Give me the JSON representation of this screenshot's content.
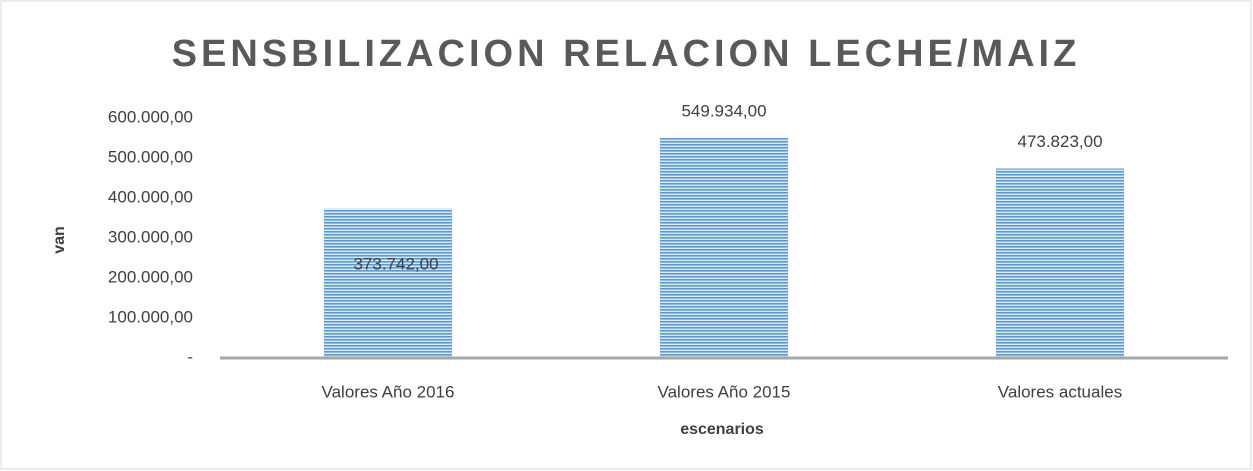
{
  "chart_data": {
    "type": "bar",
    "title": "SENSBILIZACION RELACION LECHE/MAIZ",
    "x_label": "escenarios",
    "y_label": "van",
    "categories": [
      "Valores Año 2016",
      "Valores Año 2015",
      "Valores actuales"
    ],
    "values": [
      373742,
      549934,
      473823
    ],
    "value_labels": [
      "373.742,00",
      "549.934,00",
      "473.823,00"
    ],
    "color": "#5b9bd5",
    "ylim": [
      0,
      600000
    ],
    "yticks": [
      {
        "value": 0,
        "label": "-"
      },
      {
        "value": 100000,
        "label": "100.000,00"
      },
      {
        "value": 200000,
        "label": "200.000,00"
      },
      {
        "value": 300000,
        "label": "300.000,00"
      },
      {
        "value": 400000,
        "label": "400.000,00"
      },
      {
        "value": 500000,
        "label": "500.000,00"
      },
      {
        "value": 600000,
        "label": "600.000,00"
      }
    ]
  }
}
